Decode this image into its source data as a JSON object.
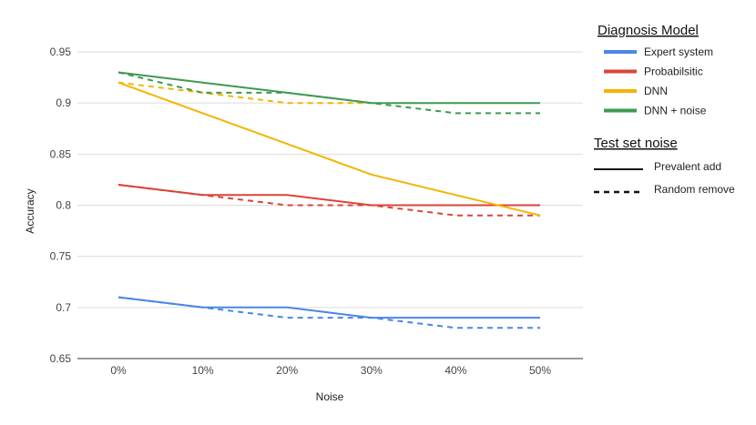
{
  "chart_data": {
    "type": "line",
    "xlabel": "Noise",
    "ylabel": "Accuracy",
    "categories": [
      "0%",
      "10%",
      "20%",
      "30%",
      "40%",
      "50%"
    ],
    "yticks": [
      "0.65",
      "0.7",
      "0.75",
      "0.8",
      "0.85",
      "0.9",
      "0.95"
    ],
    "ylim": [
      0.65,
      0.95
    ],
    "grid": true,
    "legend_placement": "right",
    "legend": {
      "model_title": "Diagnosis Model",
      "models": [
        {
          "name": "Expert system",
          "color": "#4a86e8"
        },
        {
          "name": "Probabilsitic",
          "color": "#db4437"
        },
        {
          "name": "DNN",
          "color": "#f4b400"
        },
        {
          "name": "DNN + noise",
          "color": "#3d9a50"
        }
      ],
      "noise_title": "Test set noise",
      "noise_types": [
        {
          "name": "Prevalent add",
          "style": "solid"
        },
        {
          "name": "Random remove",
          "style": "dashed"
        }
      ]
    },
    "series": [
      {
        "model": "Expert system",
        "noise": "Prevalent add",
        "values": [
          0.71,
          0.7,
          0.7,
          0.69,
          0.69,
          0.69
        ]
      },
      {
        "model": "Expert system",
        "noise": "Random remove",
        "values": [
          0.71,
          0.7,
          0.69,
          0.69,
          0.68,
          0.68
        ]
      },
      {
        "model": "Probabilsitic",
        "noise": "Prevalent add",
        "values": [
          0.82,
          0.81,
          0.81,
          0.8,
          0.8,
          0.8
        ]
      },
      {
        "model": "Probabilsitic",
        "noise": "Random remove",
        "values": [
          0.82,
          0.81,
          0.8,
          0.8,
          0.79,
          0.79
        ]
      },
      {
        "model": "DNN",
        "noise": "Prevalent add",
        "values": [
          0.92,
          0.89,
          0.86,
          0.83,
          0.81,
          0.79
        ]
      },
      {
        "model": "DNN",
        "noise": "Random remove",
        "values": [
          0.92,
          0.91,
          0.9,
          0.9,
          null,
          null
        ]
      },
      {
        "model": "DNN + noise",
        "noise": "Prevalent add",
        "values": [
          0.93,
          0.92,
          0.91,
          0.9,
          0.9,
          0.9
        ]
      },
      {
        "model": "DNN + noise",
        "noise": "Random remove",
        "values": [
          0.93,
          0.91,
          0.91,
          0.9,
          0.89,
          0.89
        ]
      }
    ]
  }
}
